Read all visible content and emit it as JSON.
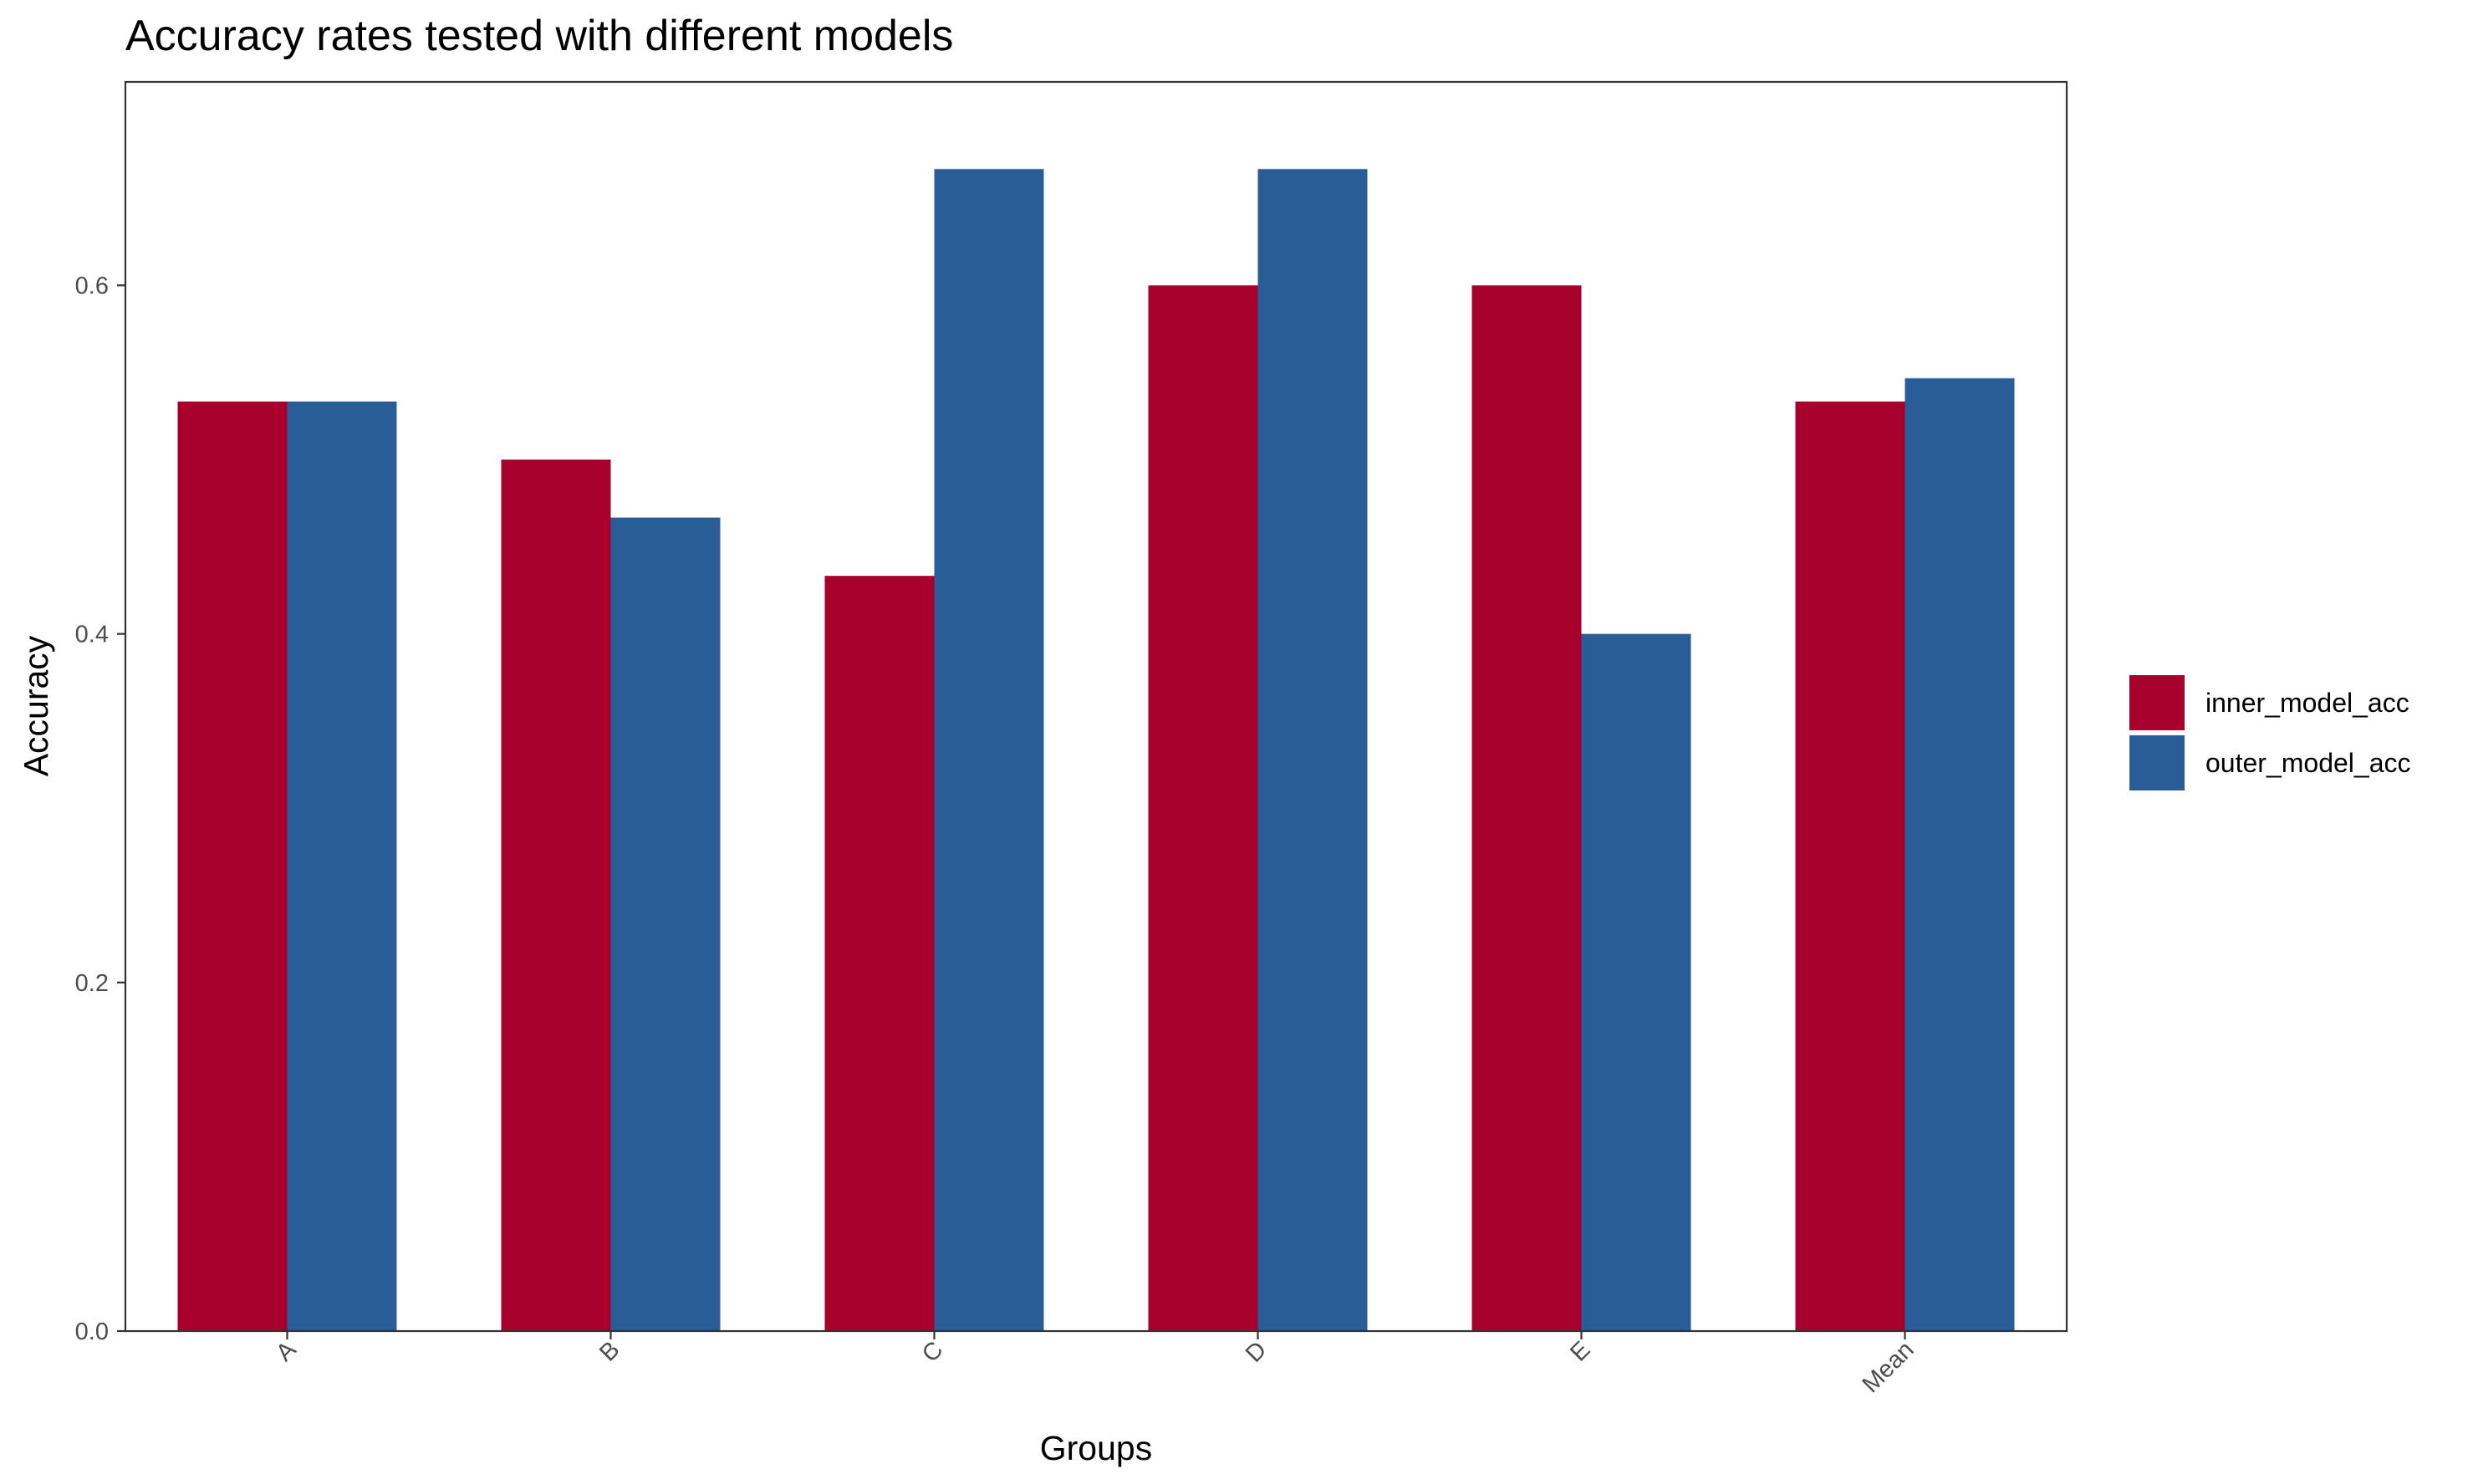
{
  "chart_data": {
    "type": "bar",
    "title": "Accuracy rates tested with different models",
    "xlabel": "Groups",
    "ylabel": "Accuracy",
    "categories": [
      "A",
      "B",
      "C",
      "D",
      "E",
      "Mean"
    ],
    "series": [
      {
        "name": "inner_model_acc",
        "color": "#A8002D",
        "values": [
          0.5333,
          0.5,
          0.4333,
          0.6,
          0.6,
          0.5333
        ]
      },
      {
        "name": "outer_model_acc",
        "color": "#285D98",
        "values": [
          0.5333,
          0.4667,
          0.6667,
          0.6667,
          0.4,
          0.5467
        ]
      }
    ],
    "yticks": [
      "0.0",
      "0.2",
      "0.4",
      "0.6"
    ],
    "ylim": [
      0,
      0.7167
    ],
    "grid": false,
    "legend_position": "right"
  }
}
